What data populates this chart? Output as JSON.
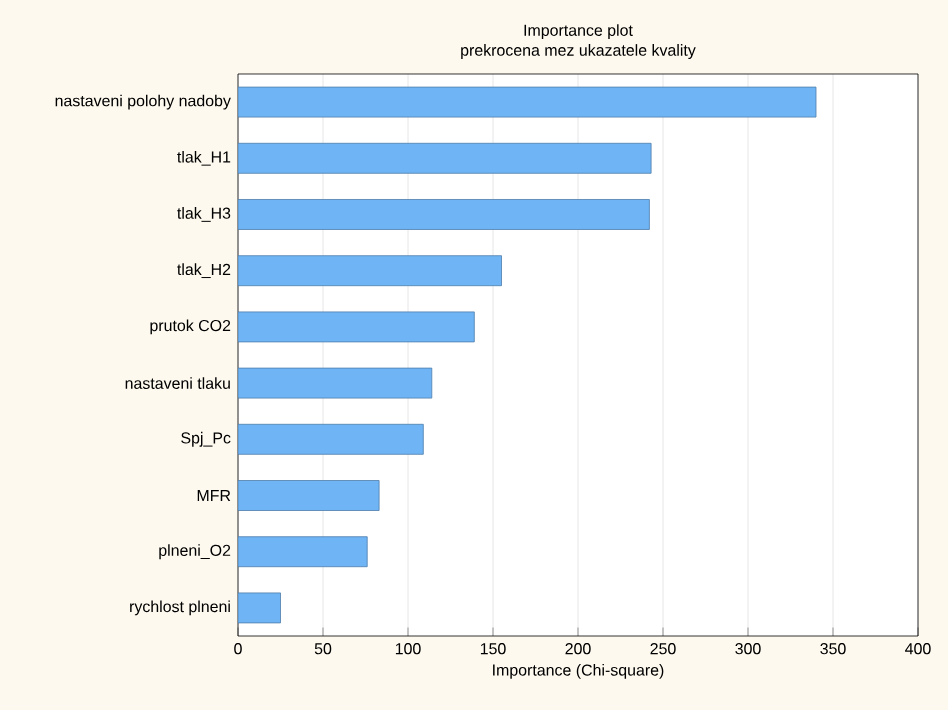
{
  "chart_data": {
    "type": "bar",
    "orientation": "horizontal",
    "title": "Importance plot",
    "subtitle": "prekrocena mez ukazatele kvality",
    "xlabel": "Importance (Chi-square)",
    "categories": [
      "nastaveni polohy nadoby",
      "tlak_H1",
      "tlak_H3",
      "tlak_H2",
      "prutok CO2",
      "nastaveni tlaku",
      "Spj_Pc",
      "MFR",
      "plneni_O2",
      "rychlost plneni"
    ],
    "values": [
      340,
      243,
      242,
      155,
      139,
      114,
      109,
      83,
      76,
      25
    ],
    "color": "#6fb4f5",
    "xlim": [
      0,
      400
    ],
    "xticks": [
      0,
      50,
      100,
      150,
      200,
      250,
      300,
      350,
      400
    ],
    "grid": "x"
  }
}
